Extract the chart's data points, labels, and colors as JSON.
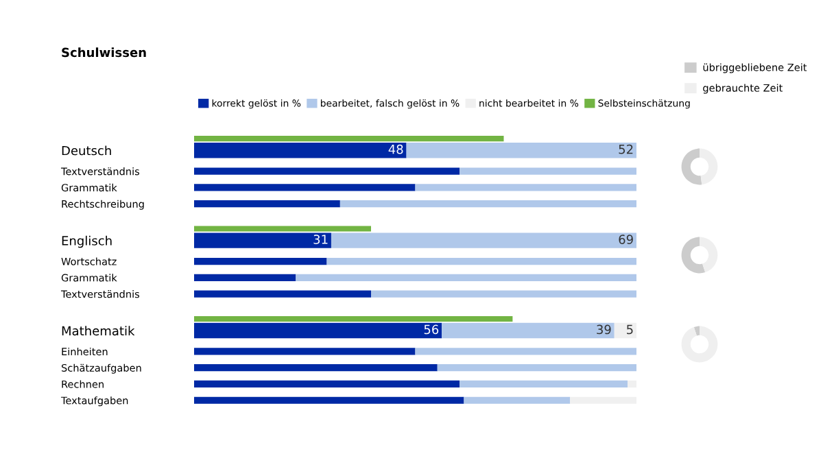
{
  "chart_data": [
    {
      "type": "bar",
      "orientation": "horizontal",
      "stacked": true,
      "title": "Schulwissen",
      "legend": "top",
      "xlim": [
        0,
        100
      ],
      "grid": false,
      "categories": [
        null,
        "Deutsch",
        "Textverständnis",
        "Grammatik",
        "Rechtschreibung",
        null,
        "Englisch",
        "Wortschatz",
        "Grammatik",
        "Textverständnis",
        null,
        "Mathematik",
        "Einheiten",
        "Schätzaufgaben",
        "Rechnen",
        "Textaufgaben"
      ],
      "series": [
        {
          "name": "korrekt gelöst in %",
          "color": "#0029a5",
          "values": [
            null,
            48,
            60,
            50,
            33,
            null,
            31,
            30,
            23,
            40,
            null,
            56,
            50,
            55,
            60,
            61
          ],
          "value_labels": [
            null,
            "48",
            null,
            null,
            null,
            null,
            "31",
            null,
            null,
            null,
            null,
            "56",
            null,
            null,
            null,
            null
          ]
        },
        {
          "name": "bearbeitet, falsch gelöst in %",
          "color": "#b0c8ea",
          "values": [
            null,
            52,
            40,
            50,
            67,
            null,
            69,
            70,
            77,
            60,
            null,
            39,
            50,
            45,
            38,
            24
          ],
          "value_labels": [
            null,
            "52",
            null,
            null,
            null,
            null,
            "69",
            null,
            null,
            null,
            null,
            "39",
            null,
            null,
            null,
            null
          ]
        },
        {
          "name": "nicht bearbeitet in %",
          "color": "#f0f0f0",
          "values": [
            null,
            null,
            null,
            null,
            null,
            null,
            null,
            null,
            null,
            null,
            null,
            5,
            null,
            null,
            2,
            15
          ],
          "value_labels": [
            null,
            null,
            null,
            null,
            null,
            null,
            null,
            null,
            null,
            null,
            null,
            "5",
            null,
            null,
            null,
            null
          ]
        },
        {
          "name": "Selbsteinschätzung",
          "color": "#72b443",
          "values": [
            70,
            null,
            null,
            null,
            null,
            40,
            null,
            null,
            null,
            null,
            72,
            null,
            null,
            null,
            null,
            null
          ]
        }
      ]
    },
    {
      "type": "donut",
      "legend": "top right",
      "categories": [
        "übriggebliebene Zeit",
        "gebrauchte Zeit"
      ],
      "values": [
        52,
        48
      ],
      "colors": [
        "#cccccc",
        "#efefef"
      ]
    },
    {
      "type": "donut",
      "values": [
        55,
        45
      ],
      "colors": [
        "#cccccc",
        "#efefef"
      ]
    },
    {
      "type": "donut",
      "values": [
        5,
        95
      ],
      "colors": [
        "#cccccc",
        "#efefef"
      ]
    }
  ]
}
